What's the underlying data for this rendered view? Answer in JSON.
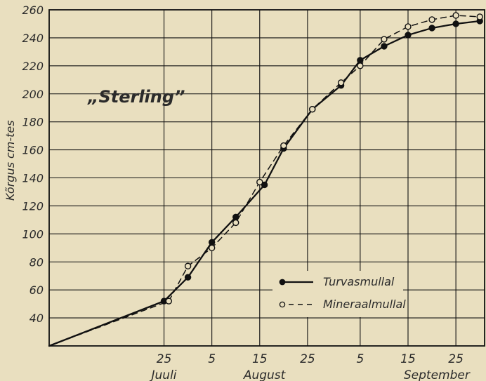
{
  "chart_data": {
    "type": "line",
    "title": "„Sterling”",
    "xlabel": "",
    "ylabel": "Kõrgus cm-tes",
    "ylim": [
      20,
      260
    ],
    "y_ticks": [
      40,
      60,
      80,
      100,
      120,
      140,
      160,
      180,
      200,
      220,
      240,
      260
    ],
    "x_ticks": [
      {
        "day": 25,
        "label": "25"
      },
      {
        "day": 35,
        "label": "5"
      },
      {
        "day": 45,
        "label": "15"
      },
      {
        "day": 55,
        "label": "25"
      },
      {
        "day": 66,
        "label": "5"
      },
      {
        "day": 76,
        "label": "15"
      },
      {
        "day": 86,
        "label": "25"
      }
    ],
    "month_labels": [
      {
        "day": 25,
        "label": "Juuli"
      },
      {
        "day": 46,
        "label": "August"
      },
      {
        "day": 82,
        "label": "September"
      }
    ],
    "legend_position": "right-middle",
    "series": [
      {
        "name": "Turvasmullal",
        "style": "solid-filled-circle",
        "points": [
          {
            "day": 25,
            "value": 52
          },
          {
            "day": 30,
            "value": 69
          },
          {
            "day": 35,
            "value": 94
          },
          {
            "day": 40,
            "value": 112
          },
          {
            "day": 46,
            "value": 135
          },
          {
            "day": 50,
            "value": 161
          },
          {
            "day": 56,
            "value": 189
          },
          {
            "day": 62,
            "value": 206
          },
          {
            "day": 66,
            "value": 224
          },
          {
            "day": 71,
            "value": 234
          },
          {
            "day": 76,
            "value": 242
          },
          {
            "day": 81,
            "value": 247
          },
          {
            "day": 86,
            "value": 250
          },
          {
            "day": 91,
            "value": 252
          }
        ]
      },
      {
        "name": "Mineraalmullal",
        "style": "dashed-open-circle",
        "points": [
          {
            "day": 26,
            "value": 52
          },
          {
            "day": 30,
            "value": 77
          },
          {
            "day": 35,
            "value": 90
          },
          {
            "day": 40,
            "value": 108
          },
          {
            "day": 45,
            "value": 137
          },
          {
            "day": 50,
            "value": 163
          },
          {
            "day": 56,
            "value": 189
          },
          {
            "day": 62,
            "value": 208
          },
          {
            "day": 66,
            "value": 220
          },
          {
            "day": 71,
            "value": 239
          },
          {
            "day": 76,
            "value": 248
          },
          {
            "day": 81,
            "value": 253
          },
          {
            "day": 86,
            "value": 256
          },
          {
            "day": 91,
            "value": 255
          }
        ]
      }
    ],
    "colors": {
      "background": "#e9dfbf",
      "grid": "#111111",
      "line": "#111111"
    }
  }
}
